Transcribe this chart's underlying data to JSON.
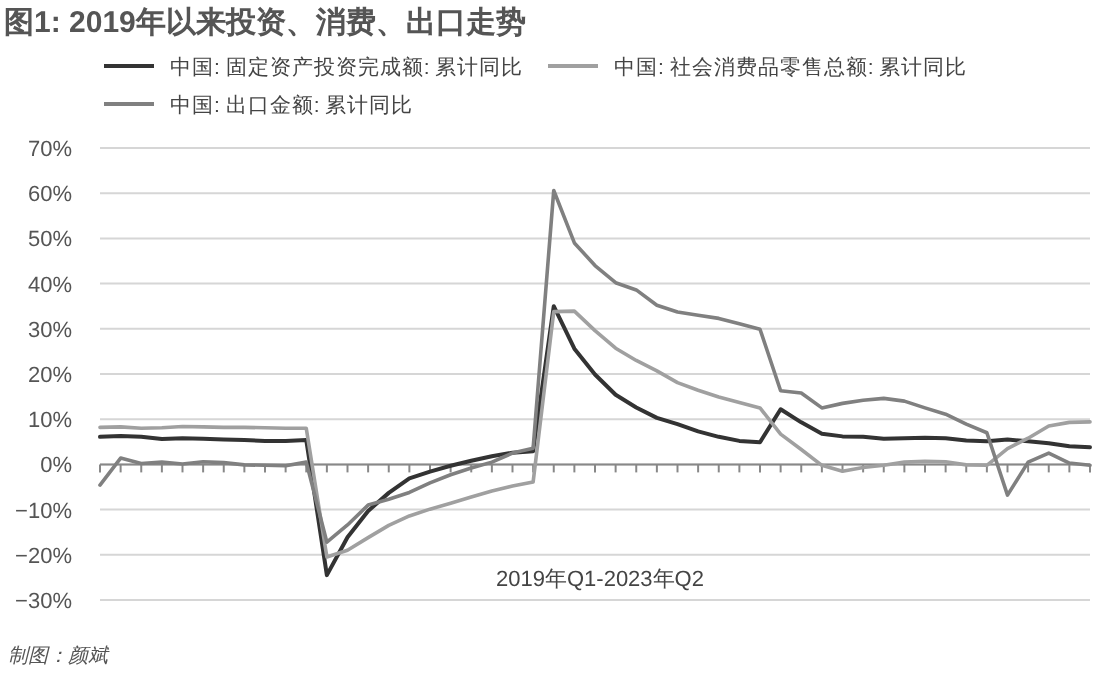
{
  "chart_data": {
    "type": "line",
    "title": "图1: 2019年以来投资、消费、出口走势",
    "xlabel": "2019年Q1-2023年Q2",
    "annotations": [
      "制图：颜斌"
    ],
    "categories": [
      null,
      null,
      null,
      null,
      null,
      null,
      null,
      null,
      null,
      null,
      null,
      null,
      null,
      null,
      null,
      null,
      null,
      null,
      null,
      null,
      null,
      null,
      null,
      null,
      null,
      null,
      null,
      null,
      null,
      null,
      null,
      null,
      null,
      null,
      null,
      null,
      null,
      null,
      null,
      null,
      null,
      null,
      null,
      null,
      null,
      null,
      null,
      null,
      null
    ],
    "series": [
      {
        "name": "中国: 固定资产投资完成额: 累计同比",
        "color": "#333333",
        "values": [
          6.1,
          6.3,
          6.1,
          5.6,
          5.8,
          5.7,
          5.5,
          5.4,
          5.2,
          5.2,
          5.4,
          -24.5,
          -16.1,
          -10.3,
          -6.3,
          -3.1,
          -1.6,
          -0.3,
          0.8,
          1.8,
          2.6,
          2.9,
          35.0,
          25.6,
          19.9,
          15.4,
          12.6,
          10.3,
          8.9,
          7.3,
          6.1,
          5.2,
          4.9,
          12.2,
          9.3,
          6.8,
          6.2,
          6.1,
          5.7,
          5.8,
          5.9,
          5.8,
          5.3,
          5.1,
          5.5,
          5.1,
          4.7,
          4.0,
          3.8
        ]
      },
      {
        "name": "中国: 社会消费品零售总额: 累计同比",
        "color": "#a0a0a0",
        "values": [
          8.2,
          8.3,
          8.0,
          8.1,
          8.4,
          8.3,
          8.2,
          8.2,
          8.1,
          8.0,
          8.0,
          -20.5,
          -19.0,
          -16.2,
          -13.5,
          -11.4,
          -9.9,
          -8.6,
          -7.2,
          -5.9,
          -4.8,
          -3.9,
          33.8,
          33.9,
          29.6,
          25.7,
          23.0,
          20.7,
          18.1,
          16.4,
          14.9,
          13.7,
          12.5,
          6.7,
          3.3,
          -0.2,
          -1.5,
          -0.7,
          -0.2,
          0.5,
          0.7,
          0.6,
          -0.1,
          -0.2,
          3.5,
          5.8,
          8.5,
          9.3,
          9.4
        ]
      },
      {
        "name": "中国: 出口金额: 累计同比",
        "color": "#808080",
        "values": [
          -4.6,
          1.4,
          0.2,
          0.5,
          0.1,
          0.6,
          0.4,
          -0.1,
          -0.2,
          -0.3,
          0.5,
          -17.2,
          -13.4,
          -9.0,
          -7.7,
          -6.2,
          -4.1,
          -2.3,
          -0.8,
          0.5,
          2.5,
          3.6,
          60.6,
          49.0,
          44.0,
          40.2,
          38.6,
          35.2,
          33.7,
          33.0,
          32.3,
          31.1,
          29.9,
          16.3,
          15.8,
          12.5,
          13.5,
          14.2,
          14.6,
          14.0,
          12.5,
          11.1,
          8.9,
          7.0,
          -6.8,
          0.5,
          2.5,
          0.3,
          -0.2
        ]
      }
    ],
    "ylim": [
      -30,
      70
    ],
    "yticks": [
      {
        "value": -30,
        "label": "−30%"
      },
      {
        "value": -20,
        "label": "−20%"
      },
      {
        "value": -10,
        "label": "−10%"
      },
      {
        "value": 0,
        "label": "0%"
      },
      {
        "value": 10,
        "label": "10%"
      },
      {
        "value": 20,
        "label": "20%"
      },
      {
        "value": 30,
        "label": "30%"
      },
      {
        "value": 40,
        "label": "40%"
      },
      {
        "value": 50,
        "label": "50%"
      },
      {
        "value": 60,
        "label": "60%"
      },
      {
        "value": 70,
        "label": "70%"
      }
    ],
    "grid": "y",
    "legend": "top",
    "marker": "none",
    "line_style": "solid"
  }
}
